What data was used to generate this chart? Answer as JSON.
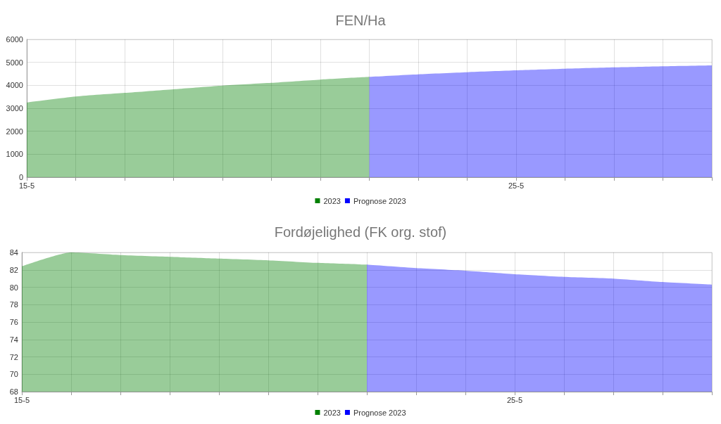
{
  "chart_data": [
    {
      "type": "area",
      "title": "FEN/Ha",
      "categories": [
        "15-5",
        null,
        null,
        null,
        null,
        null,
        null,
        null,
        null,
        null,
        "25-5",
        null,
        null,
        null,
        null
      ],
      "series": [
        {
          "name": "2023",
          "color": "#008000",
          "values": [
            3250,
            3510,
            3670,
            3830,
            3990,
            4110,
            4250,
            4370,
            null,
            null,
            null,
            null,
            null,
            null,
            null
          ]
        },
        {
          "name": "Prognose 2023",
          "color": "#0000ff",
          "values": [
            null,
            null,
            null,
            null,
            null,
            null,
            null,
            4370,
            4480,
            4570,
            4650,
            4720,
            4780,
            4830,
            4870
          ]
        }
      ],
      "ylim": [
        0,
        6000
      ],
      "yticks": [
        0,
        1000,
        2000,
        3000,
        4000,
        5000,
        6000
      ],
      "grid": true,
      "legend": "bottom"
    },
    {
      "type": "area",
      "title": "Fordøjelighed (FK org. stof)",
      "categories": [
        "15-5",
        null,
        null,
        null,
        null,
        null,
        null,
        null,
        null,
        null,
        "25-5",
        null,
        null,
        null,
        null
      ],
      "series": [
        {
          "name": "2023",
          "color": "#008000",
          "values": [
            82.4,
            84.0,
            83.7,
            83.5,
            83.3,
            83.1,
            82.8,
            82.6,
            null,
            null,
            null,
            null,
            null,
            null,
            null
          ]
        },
        {
          "name": "Prognose 2023",
          "color": "#0000ff",
          "values": [
            null,
            null,
            null,
            null,
            null,
            null,
            null,
            82.6,
            82.2,
            81.9,
            81.5,
            81.2,
            81.0,
            80.6,
            80.3
          ]
        }
      ],
      "ylim": [
        68,
        84
      ],
      "yticks": [
        68,
        70,
        72,
        74,
        76,
        78,
        80,
        82,
        84
      ],
      "grid": true,
      "legend": "bottom"
    }
  ]
}
